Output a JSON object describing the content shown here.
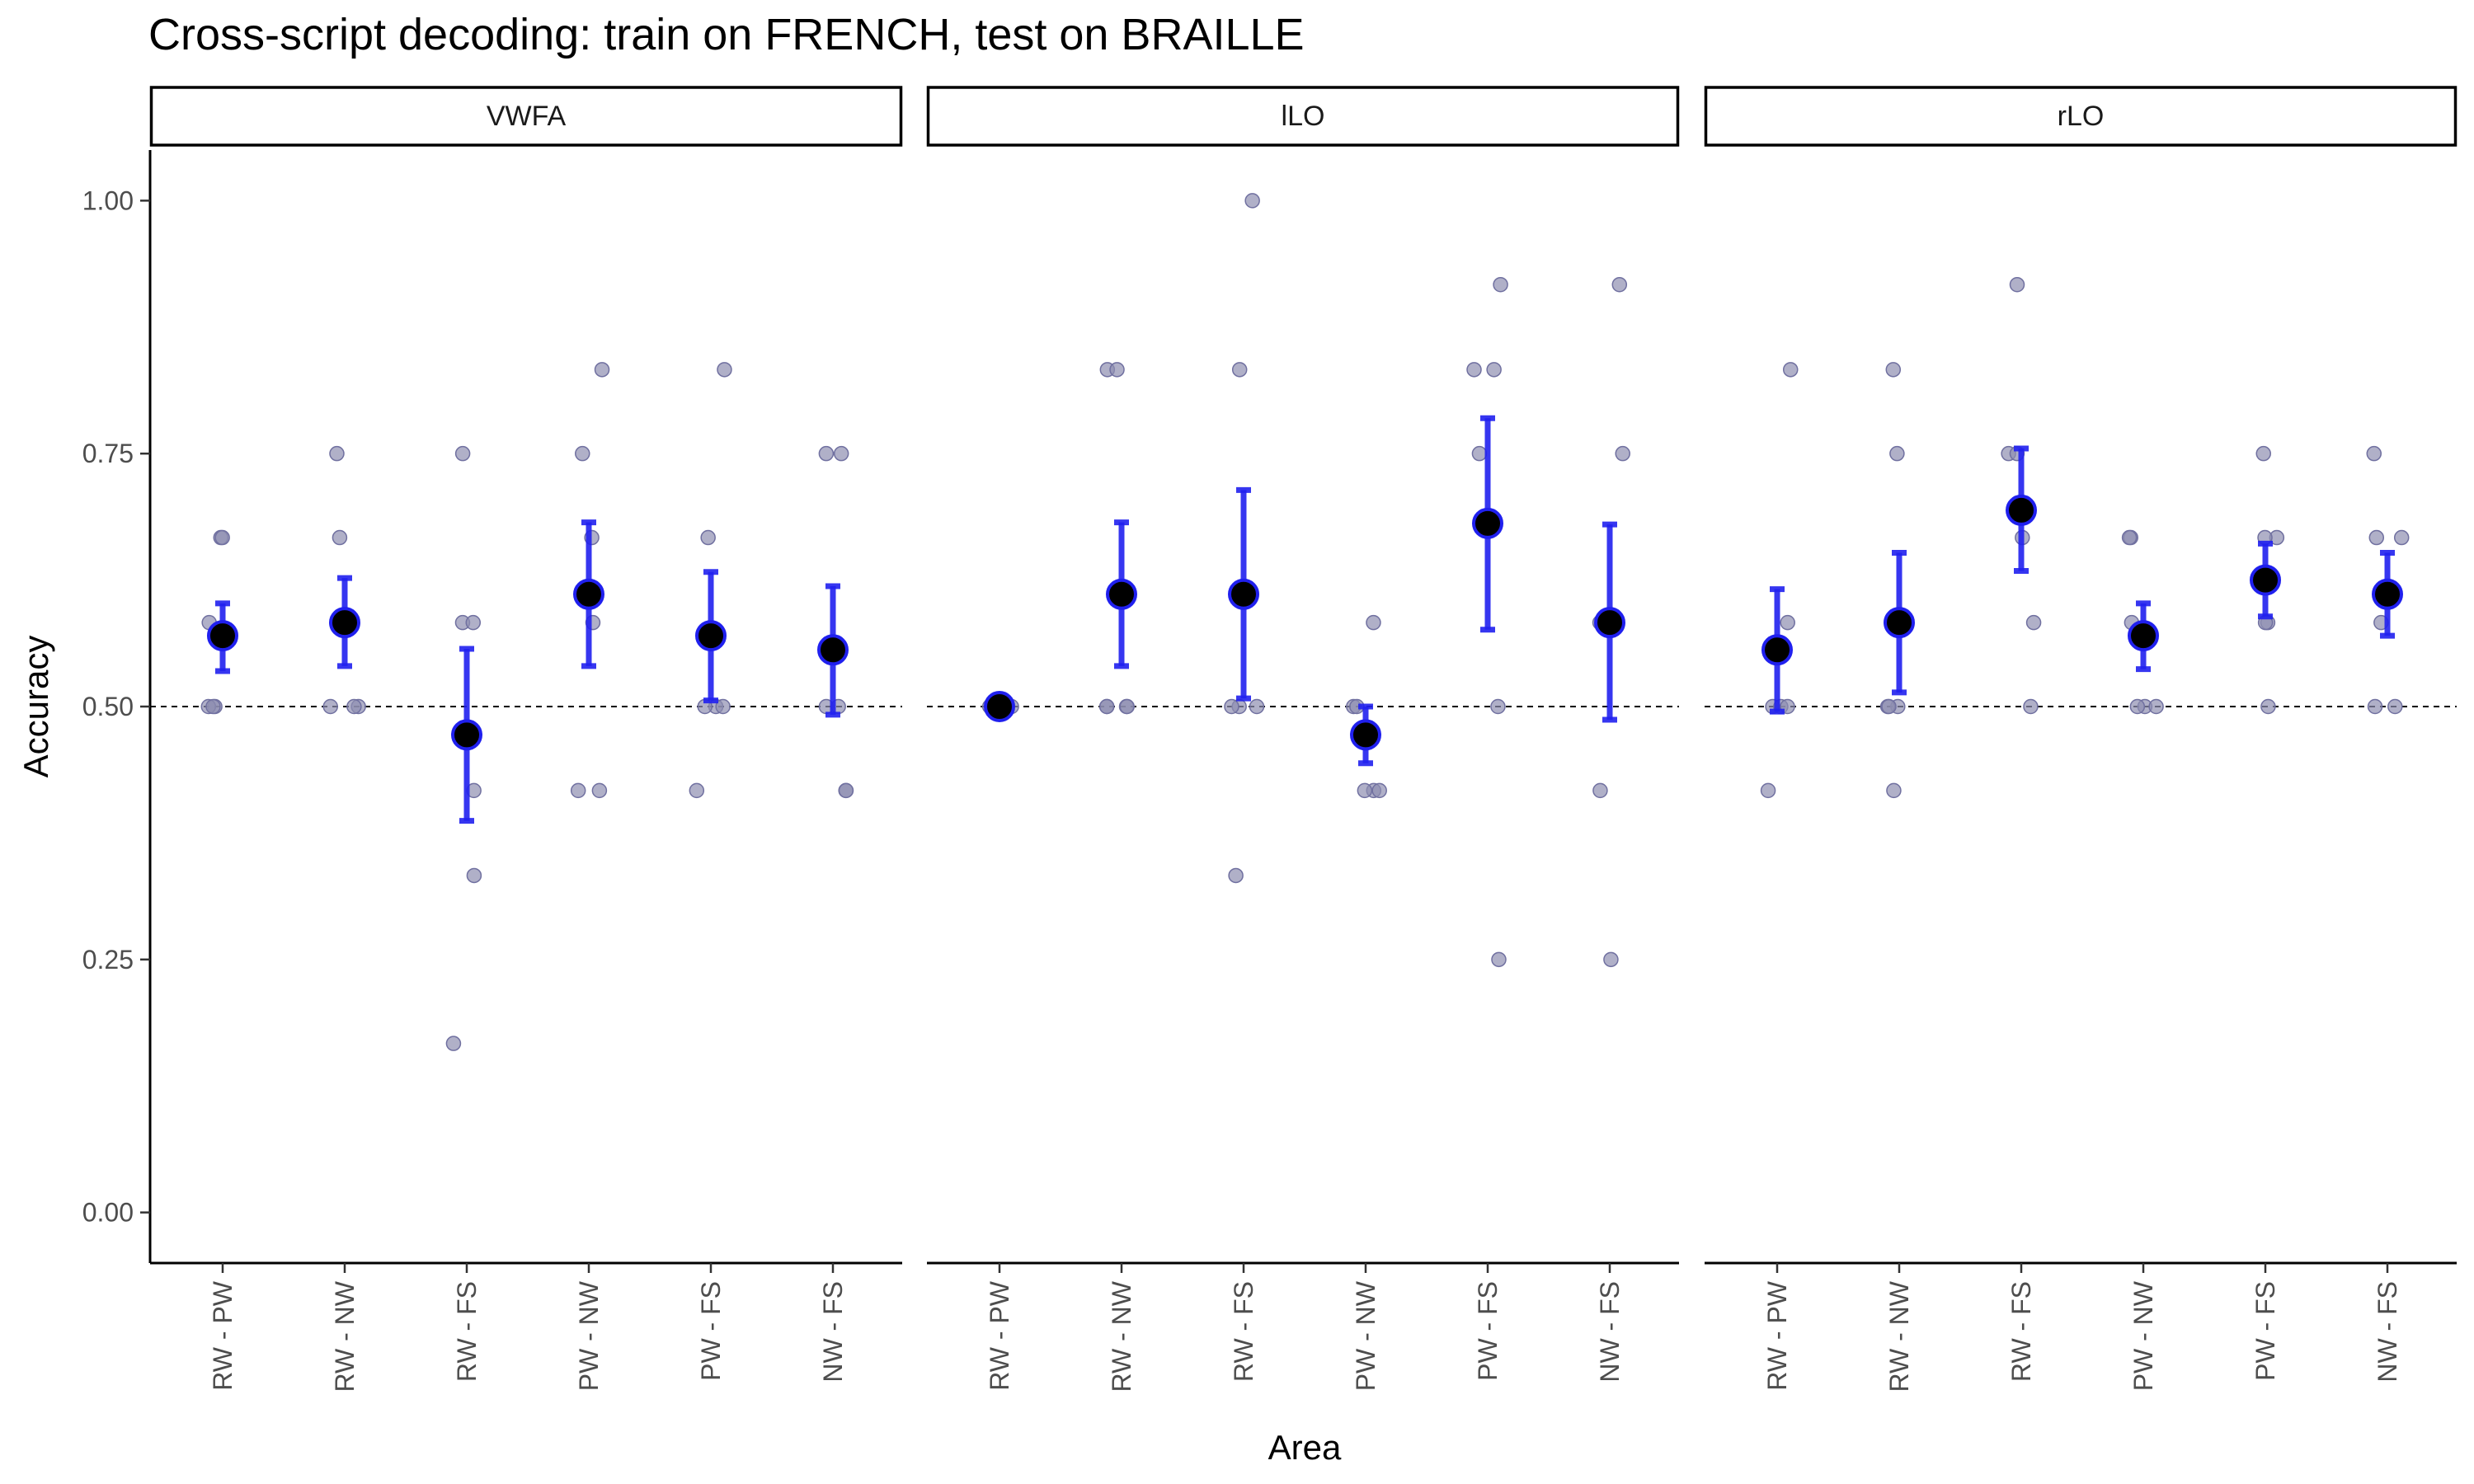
{
  "chart_data": {
    "type": "scatter",
    "title": "Cross-script decoding: train on FRENCH, test on BRAILLE",
    "xlabel": "Area",
    "ylabel": "Accuracy",
    "ylim": [
      -0.05,
      1.05
    ],
    "yticks": [
      0.0,
      0.25,
      0.5,
      0.75,
      1.0
    ],
    "ytick_labels": [
      "0.00",
      "0.25",
      "0.50",
      "0.75",
      "1.00"
    ],
    "reference_line": 0.5,
    "categories": [
      "RW - PW",
      "RW - NW",
      "RW - FS",
      "PW - NW",
      "PW - FS",
      "NW - FS"
    ],
    "grid": false,
    "colors": {
      "points": "#8f8fb0",
      "mean": "#000000",
      "errorbar": "#2020ee",
      "reference": "#000000"
    },
    "panels": [
      {
        "name": "VWFA",
        "groups": [
          {
            "category": "RW - PW",
            "mean": 0.57,
            "ci": [
              0.535,
              0.602
            ],
            "points": [
              0.667,
              0.667,
              0.5,
              0.5,
              0.5,
              0.583
            ]
          },
          {
            "category": "RW - NW",
            "mean": 0.583,
            "ci": [
              0.54,
              0.627
            ],
            "points": [
              0.75,
              0.667,
              0.5,
              0.5,
              0.5,
              0.583
            ]
          },
          {
            "category": "RW - FS",
            "mean": 0.472,
            "ci": [
              0.387,
              0.557
            ],
            "points": [
              0.75,
              0.583,
              0.583,
              0.417,
              0.333,
              0.167
            ]
          },
          {
            "category": "PW - NW",
            "mean": 0.611,
            "ci": [
              0.54,
              0.682
            ],
            "points": [
              0.833,
              0.75,
              0.667,
              0.583,
              0.417,
              0.417
            ]
          },
          {
            "category": "PW - FS",
            "mean": 0.57,
            "ci": [
              0.506,
              0.633
            ],
            "points": [
              0.833,
              0.667,
              0.5,
              0.5,
              0.5,
              0.417
            ]
          },
          {
            "category": "NW - FS",
            "mean": 0.556,
            "ci": [
              0.492,
              0.619
            ],
            "points": [
              0.75,
              0.75,
              0.5,
              0.5,
              0.417,
              0.417
            ]
          }
        ]
      },
      {
        "name": "lLO",
        "groups": [
          {
            "category": "RW - PW",
            "mean": 0.5,
            "ci": [
              0.5,
              0.5
            ],
            "points": [
              0.5,
              0.5,
              0.5,
              0.5,
              0.5,
              0.5
            ]
          },
          {
            "category": "RW - NW",
            "mean": 0.611,
            "ci": [
              0.54,
              0.682
            ],
            "points": [
              0.833,
              0.833,
              0.5,
              0.5,
              0.5,
              0.5
            ]
          },
          {
            "category": "RW - FS",
            "mean": 0.611,
            "ci": [
              0.508,
              0.714
            ],
            "points": [
              1.0,
              0.833,
              0.5,
              0.5,
              0.5,
              0.333
            ]
          },
          {
            "category": "PW - NW",
            "mean": 0.472,
            "ci": [
              0.444,
              0.5
            ],
            "points": [
              0.583,
              0.5,
              0.5,
              0.417,
              0.417,
              0.417
            ]
          },
          {
            "category": "PW - FS",
            "mean": 0.681,
            "ci": [
              0.576,
              0.785
            ],
            "points": [
              0.917,
              0.833,
              0.833,
              0.75,
              0.5,
              0.25
            ]
          },
          {
            "category": "NW - FS",
            "mean": 0.583,
            "ci": [
              0.487,
              0.68
            ],
            "points": [
              0.917,
              0.75,
              0.583,
              0.583,
              0.417,
              0.25
            ]
          }
        ]
      },
      {
        "name": "rLO",
        "groups": [
          {
            "category": "RW - PW",
            "mean": 0.556,
            "ci": [
              0.495,
              0.616
            ],
            "points": [
              0.833,
              0.583,
              0.5,
              0.5,
              0.5,
              0.417
            ]
          },
          {
            "category": "RW - NW",
            "mean": 0.583,
            "ci": [
              0.514,
              0.652
            ],
            "points": [
              0.833,
              0.75,
              0.5,
              0.5,
              0.5,
              0.417
            ]
          },
          {
            "category": "RW - FS",
            "mean": 0.694,
            "ci": [
              0.634,
              0.755
            ],
            "points": [
              0.917,
              0.75,
              0.75,
              0.667,
              0.583,
              0.5
            ]
          },
          {
            "category": "PW - NW",
            "mean": 0.57,
            "ci": [
              0.537,
              0.602
            ],
            "points": [
              0.667,
              0.667,
              0.5,
              0.5,
              0.5,
              0.583
            ]
          },
          {
            "category": "PW - FS",
            "mean": 0.625,
            "ci": [
              0.589,
              0.661
            ],
            "points": [
              0.75,
              0.667,
              0.667,
              0.583,
              0.583,
              0.5
            ]
          },
          {
            "category": "NW - FS",
            "mean": 0.611,
            "ci": [
              0.57,
              0.652
            ],
            "points": [
              0.75,
              0.667,
              0.667,
              0.583,
              0.5,
              0.5
            ]
          }
        ]
      }
    ]
  }
}
